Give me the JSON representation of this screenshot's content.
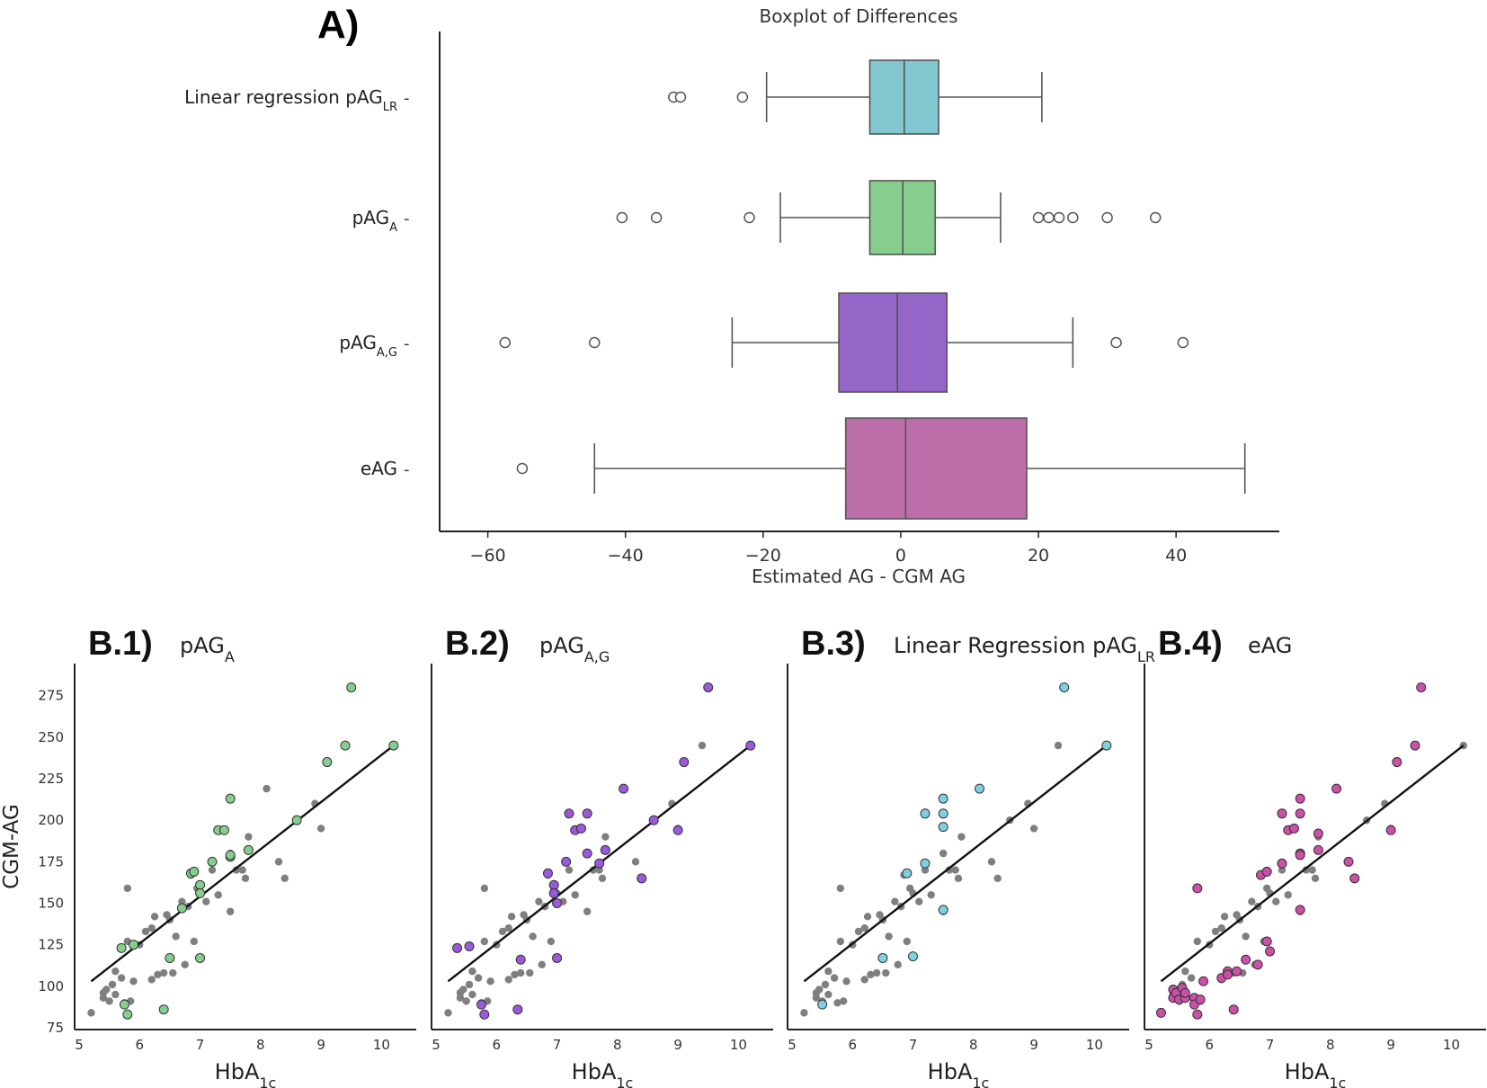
{
  "panel_a": {
    "label": "A)",
    "chart_data": {
      "type": "boxplot",
      "title": "Boxplot of Differences",
      "xlabel": "Estimated AG - CGM AG",
      "xlim": [
        -67,
        55
      ],
      "xticks": [
        -60,
        -40,
        -20,
        0,
        20,
        40
      ],
      "xtick_labels": [
        "−60",
        "−40",
        "−20",
        "0",
        "20",
        "40"
      ],
      "series": [
        {
          "name": "Linear regression pAG",
          "sub": "LR",
          "color": "#83c8d0",
          "whisker_low": -19.5,
          "q1": -4.5,
          "median": 0.5,
          "q3": 5.5,
          "whisker_high": 20.5,
          "outliers": [
            -33,
            -32,
            -23
          ]
        },
        {
          "name": "pAG",
          "sub": "A",
          "color": "#86ce8e",
          "whisker_low": -17.5,
          "q1": -4.5,
          "median": 0.3,
          "q3": 5.0,
          "whisker_high": 14.5,
          "outliers": [
            -40.5,
            -35.5,
            -22,
            20,
            21.5,
            23,
            25,
            30,
            37
          ]
        },
        {
          "name": "pAG",
          "sub": "A,G",
          "color": "#9566c8",
          "whisker_low": -24.5,
          "q1": -9.0,
          "median": -0.5,
          "q3": 6.7,
          "whisker_high": 25,
          "outliers": [
            -57.5,
            -44.5,
            31.3,
            41
          ]
        },
        {
          "name": "eAG",
          "sub": "",
          "color": "#bc6ea8",
          "whisker_low": -44.5,
          "q1": -8.0,
          "median": 0.7,
          "q3": 18.3,
          "whisker_high": 50,
          "outliers": [
            -55
          ]
        }
      ]
    }
  },
  "panels_b": {
    "ylabel": "CGM-AG",
    "xlabel_main": "HbA",
    "xlabel_sub": "1c",
    "xlim": [
      5,
      10.5
    ],
    "ylim": [
      75,
      290
    ],
    "xticks": [
      5,
      6,
      7,
      8,
      9,
      10
    ],
    "yticks": [
      75,
      100,
      125,
      150,
      175,
      200,
      225,
      250,
      275
    ],
    "regression_line": {
      "x": [
        5.2,
        10.2
      ],
      "y": [
        103,
        245
      ]
    },
    "gray_points": [
      [
        5.2,
        84
      ],
      [
        5.4,
        93
      ],
      [
        5.4,
        96
      ],
      [
        5.45,
        98
      ],
      [
        5.5,
        91
      ],
      [
        5.55,
        101
      ],
      [
        5.6,
        95
      ],
      [
        5.6,
        109
      ],
      [
        5.7,
        105
      ],
      [
        5.75,
        90
      ],
      [
        5.8,
        159
      ],
      [
        5.8,
        127
      ],
      [
        5.85,
        91
      ],
      [
        5.9,
        103
      ],
      [
        6.0,
        125
      ],
      [
        6.1,
        133
      ],
      [
        6.2,
        135
      ],
      [
        6.2,
        104
      ],
      [
        6.25,
        142
      ],
      [
        6.3,
        107
      ],
      [
        6.4,
        108
      ],
      [
        6.45,
        143
      ],
      [
        6.5,
        140
      ],
      [
        6.55,
        108
      ],
      [
        6.6,
        130
      ],
      [
        6.7,
        151
      ],
      [
        6.75,
        113
      ],
      [
        6.8,
        148
      ],
      [
        6.85,
        167
      ],
      [
        6.9,
        127
      ],
      [
        6.95,
        159
      ],
      [
        7.0,
        156
      ],
      [
        7.1,
        151
      ],
      [
        7.2,
        170
      ],
      [
        7.3,
        155
      ],
      [
        7.5,
        180
      ],
      [
        7.5,
        145
      ],
      [
        7.6,
        170
      ],
      [
        7.7,
        170
      ],
      [
        7.75,
        165
      ],
      [
        7.8,
        190
      ],
      [
        8.1,
        219
      ],
      [
        8.3,
        175
      ],
      [
        8.4,
        165
      ],
      [
        8.6,
        200
      ],
      [
        8.9,
        210
      ],
      [
        9.0,
        195
      ],
      [
        9.4,
        245
      ],
      [
        10.2,
        245
      ]
    ],
    "panels": [
      {
        "label": "B.1)",
        "title": "pAG",
        "title_sub": "A",
        "color": "#86ce8e",
        "points": [
          [
            5.7,
            123
          ],
          [
            5.75,
            89
          ],
          [
            5.8,
            83
          ],
          [
            5.9,
            125
          ],
          [
            6.4,
            86
          ],
          [
            6.5,
            117
          ],
          [
            6.7,
            147
          ],
          [
            6.85,
            168
          ],
          [
            6.9,
            169
          ],
          [
            7.0,
            161
          ],
          [
            7.0,
            156
          ],
          [
            7.0,
            117
          ],
          [
            7.2,
            175
          ],
          [
            7.3,
            194
          ],
          [
            7.4,
            194
          ],
          [
            7.5,
            213
          ],
          [
            7.5,
            178
          ],
          [
            7.5,
            179
          ],
          [
            7.8,
            182
          ],
          [
            8.6,
            200
          ],
          [
            9.1,
            235
          ],
          [
            9.4,
            245
          ],
          [
            9.5,
            280
          ],
          [
            10.2,
            245
          ]
        ]
      },
      {
        "label": "B.2)",
        "title": "pAG",
        "title_sub": "A,G",
        "color": "#9b59db",
        "points": [
          [
            5.35,
            123
          ],
          [
            5.55,
            124
          ],
          [
            5.75,
            89
          ],
          [
            5.8,
            83
          ],
          [
            6.35,
            86
          ],
          [
            6.4,
            116
          ],
          [
            6.85,
            168
          ],
          [
            6.95,
            161
          ],
          [
            6.95,
            156
          ],
          [
            7.0,
            117
          ],
          [
            7.0,
            150
          ],
          [
            7.15,
            175
          ],
          [
            7.2,
            204
          ],
          [
            7.3,
            194
          ],
          [
            7.4,
            195
          ],
          [
            7.5,
            180
          ],
          [
            7.5,
            204
          ],
          [
            7.7,
            174
          ],
          [
            7.8,
            182
          ],
          [
            8.1,
            219
          ],
          [
            8.4,
            165
          ],
          [
            8.6,
            200
          ],
          [
            9.0,
            194
          ],
          [
            9.1,
            235
          ],
          [
            9.5,
            280
          ],
          [
            10.2,
            245
          ]
        ]
      },
      {
        "label": "B.3)",
        "title": "Linear Regression pAG",
        "title_sub": "LR",
        "color": "#7fd0e0",
        "points": [
          [
            5.5,
            89
          ],
          [
            6.5,
            117
          ],
          [
            6.9,
            168
          ],
          [
            7.0,
            118
          ],
          [
            7.2,
            174
          ],
          [
            7.2,
            204
          ],
          [
            7.5,
            213
          ],
          [
            7.5,
            204
          ],
          [
            7.5,
            196
          ],
          [
            7.5,
            146
          ],
          [
            8.1,
            219
          ],
          [
            9.5,
            280
          ],
          [
            10.2,
            245
          ]
        ]
      },
      {
        "label": "B.4)",
        "title": "eAG",
        "title_sub": "",
        "color": "#cc4fa8",
        "points": [
          [
            5.2,
            84
          ],
          [
            5.4,
            93
          ],
          [
            5.4,
            98
          ],
          [
            5.45,
            96
          ],
          [
            5.5,
            92
          ],
          [
            5.55,
            99
          ],
          [
            5.6,
            93
          ],
          [
            5.6,
            96
          ],
          [
            5.75,
            93
          ],
          [
            5.75,
            89
          ],
          [
            5.8,
            83
          ],
          [
            5.8,
            159
          ],
          [
            5.85,
            92
          ],
          [
            5.9,
            103
          ],
          [
            6.2,
            105
          ],
          [
            6.3,
            109
          ],
          [
            6.3,
            107
          ],
          [
            6.4,
            86
          ],
          [
            6.45,
            109
          ],
          [
            6.6,
            116
          ],
          [
            6.8,
            113
          ],
          [
            6.85,
            167
          ],
          [
            6.95,
            127
          ],
          [
            6.95,
            169
          ],
          [
            7.0,
            121
          ],
          [
            7.2,
            174
          ],
          [
            7.2,
            204
          ],
          [
            7.3,
            194
          ],
          [
            7.4,
            195
          ],
          [
            7.5,
            213
          ],
          [
            7.5,
            204
          ],
          [
            7.5,
            180
          ],
          [
            7.5,
            146
          ],
          [
            7.5,
            179
          ],
          [
            7.8,
            182
          ],
          [
            7.8,
            192
          ],
          [
            8.1,
            219
          ],
          [
            8.3,
            175
          ],
          [
            8.4,
            165
          ],
          [
            9.0,
            194
          ],
          [
            9.1,
            235
          ],
          [
            9.4,
            245
          ],
          [
            9.5,
            280
          ]
        ]
      }
    ]
  }
}
